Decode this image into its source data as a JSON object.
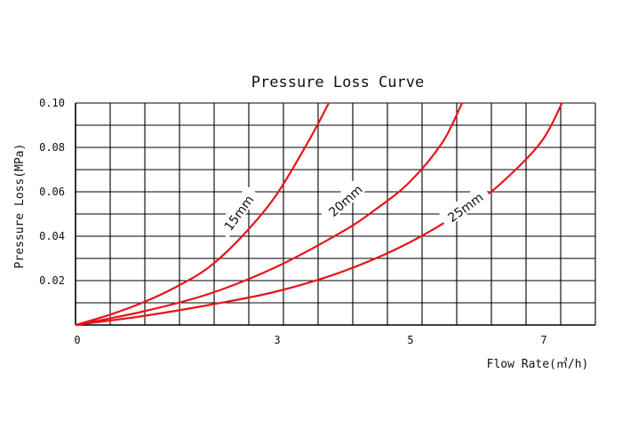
{
  "chart_data": {
    "type": "line",
    "title": "Pressure Loss Curve",
    "xlabel": "Flow Rate(㎥/h)",
    "ylabel": "Pressure Loss(MPa)",
    "xlim": [
      0,
      7.8
    ],
    "ylim": [
      0,
      0.1
    ],
    "grid": true,
    "x_tick_labels": [
      "0",
      "3",
      "5",
      "7"
    ],
    "x_tick_values": [
      0,
      3,
      5,
      7
    ],
    "y_tick_labels": [
      "0.10",
      "0.08",
      "0.06",
      "0.04",
      "0.02"
    ],
    "y_tick_values": [
      0.1,
      0.08,
      0.06,
      0.04,
      0.02
    ],
    "line_color": "#e8141c",
    "series": [
      {
        "name": "15mm",
        "x": [
          0,
          0.5,
          1.0,
          1.5,
          2.0,
          2.5,
          3.0,
          3.5,
          3.8
        ],
        "y": [
          0,
          0.0045,
          0.01,
          0.017,
          0.026,
          0.04,
          0.058,
          0.083,
          0.1
        ]
      },
      {
        "name": "20mm",
        "x": [
          0,
          1.0,
          2.0,
          3.0,
          4.0,
          4.5,
          5.0,
          5.5,
          5.8
        ],
        "y": [
          0,
          0.006,
          0.014,
          0.026,
          0.042,
          0.052,
          0.064,
          0.082,
          0.1
        ]
      },
      {
        "name": "25mm",
        "x": [
          0,
          1.0,
          2.0,
          3.0,
          4.0,
          5.0,
          6.0,
          6.5,
          7.0,
          7.3
        ],
        "y": [
          0,
          0.004,
          0.009,
          0.015,
          0.024,
          0.037,
          0.055,
          0.067,
          0.083,
          0.1
        ]
      }
    ]
  }
}
